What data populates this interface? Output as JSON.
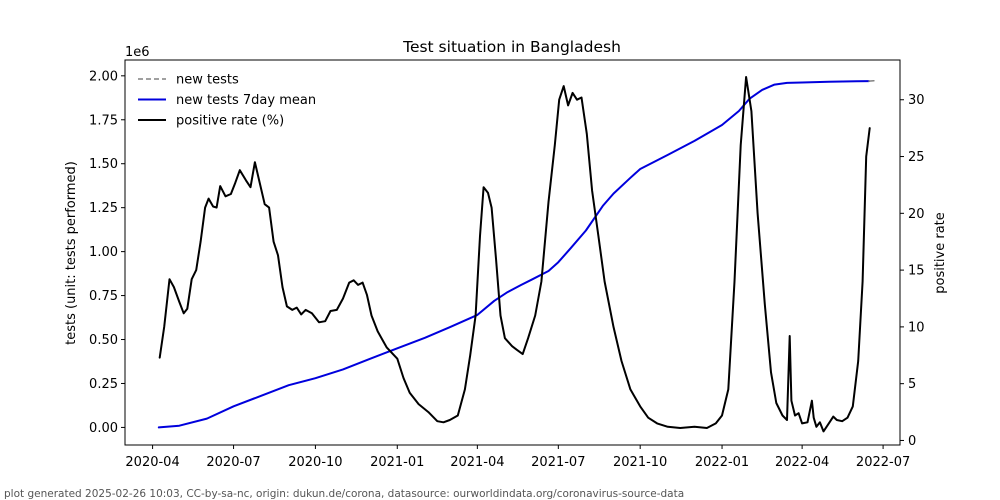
{
  "chart_data": {
    "type": "line",
    "title": "Test situation in Bangladesh",
    "ylabel": "tests (unit: tests performed)",
    "ylabel_right": "positive rate",
    "y_offset_label": "1e6",
    "footer": "plot generated 2025-02-26 10:03, CC-by-sa-nc, origin: dukun.de/corona, datasource: ourworldindata.org/coronavirus-source-data",
    "x_ticks": [
      "2020-04",
      "2020-07",
      "2020-10",
      "2021-01",
      "2021-04",
      "2021-07",
      "2021-10",
      "2022-01",
      "2022-04",
      "2022-07"
    ],
    "y_ticks": [
      "0.00",
      "0.25",
      "0.50",
      "0.75",
      "1.00",
      "1.25",
      "1.50",
      "1.75",
      "2.00"
    ],
    "y2_ticks": [
      "0",
      "5",
      "10",
      "15",
      "20",
      "25",
      "30"
    ],
    "xlim": [
      "2020-03-01",
      "2022-07-20"
    ],
    "ylim": [
      -0.1,
      2.09
    ],
    "y2lim": [
      -0.4,
      33.5
    ],
    "legend_position": "upper-left",
    "grid": false,
    "series": [
      {
        "name": "new tests",
        "axis": "left",
        "style": "dashed",
        "color": "#808080",
        "points": [
          [
            "2022-06-15",
            1.97
          ],
          [
            "2022-06-22",
            1.972
          ]
        ]
      },
      {
        "name": "new tests 7day mean",
        "axis": "left",
        "style": "solid",
        "color": "#0000dd",
        "points": [
          [
            "2020-04-08",
            0.0
          ],
          [
            "2020-05-01",
            0.01
          ],
          [
            "2020-06-01",
            0.05
          ],
          [
            "2020-07-01",
            0.12
          ],
          [
            "2020-08-01",
            0.18
          ],
          [
            "2020-09-01",
            0.24
          ],
          [
            "2020-10-01",
            0.28
          ],
          [
            "2020-11-01",
            0.33
          ],
          [
            "2020-12-01",
            0.39
          ],
          [
            "2021-01-01",
            0.45
          ],
          [
            "2021-02-01",
            0.51
          ],
          [
            "2021-03-01",
            0.57
          ],
          [
            "2021-04-01",
            0.64
          ],
          [
            "2021-04-20",
            0.72
          ],
          [
            "2021-05-05",
            0.77
          ],
          [
            "2021-05-20",
            0.81
          ],
          [
            "2021-06-01",
            0.84
          ],
          [
            "2021-06-20",
            0.89
          ],
          [
            "2021-07-01",
            0.94
          ],
          [
            "2021-07-15",
            1.02
          ],
          [
            "2021-08-01",
            1.12
          ],
          [
            "2021-08-20",
            1.26
          ],
          [
            "2021-09-01",
            1.33
          ],
          [
            "2021-09-20",
            1.42
          ],
          [
            "2021-10-01",
            1.47
          ],
          [
            "2021-11-01",
            1.55
          ],
          [
            "2021-12-01",
            1.63
          ],
          [
            "2022-01-01",
            1.72
          ],
          [
            "2022-01-20",
            1.8
          ],
          [
            "2022-02-01",
            1.87
          ],
          [
            "2022-02-15",
            1.92
          ],
          [
            "2022-03-01",
            1.95
          ],
          [
            "2022-03-15",
            1.96
          ],
          [
            "2022-04-01",
            1.962
          ],
          [
            "2022-05-01",
            1.966
          ],
          [
            "2022-06-01",
            1.969
          ],
          [
            "2022-06-15",
            1.97
          ]
        ]
      },
      {
        "name": "positive rate (%)",
        "axis": "right",
        "style": "solid",
        "color": "#000000",
        "points": [
          [
            "2020-04-09",
            7.3
          ],
          [
            "2020-04-14",
            10
          ],
          [
            "2020-04-20",
            14.2
          ],
          [
            "2020-04-25",
            13.5
          ],
          [
            "2020-05-01",
            12.2
          ],
          [
            "2020-05-06",
            11.2
          ],
          [
            "2020-05-10",
            11.6
          ],
          [
            "2020-05-15",
            14.2
          ],
          [
            "2020-05-20",
            15
          ],
          [
            "2020-05-25",
            17.5
          ],
          [
            "2020-05-30",
            20.5
          ],
          [
            "2020-06-03",
            21.3
          ],
          [
            "2020-06-08",
            20.6
          ],
          [
            "2020-06-12",
            20.5
          ],
          [
            "2020-06-16",
            22.4
          ],
          [
            "2020-06-22",
            21.5
          ],
          [
            "2020-06-28",
            21.7
          ],
          [
            "2020-07-03",
            22.7
          ],
          [
            "2020-07-08",
            23.8
          ],
          [
            "2020-07-15",
            22.9
          ],
          [
            "2020-07-20",
            22.3
          ],
          [
            "2020-07-25",
            24.5
          ],
          [
            "2020-07-30",
            22.8
          ],
          [
            "2020-08-05",
            20.8
          ],
          [
            "2020-08-10",
            20.5
          ],
          [
            "2020-08-15",
            17.5
          ],
          [
            "2020-08-20",
            16.3
          ],
          [
            "2020-08-25",
            13.5
          ],
          [
            "2020-08-30",
            11.8
          ],
          [
            "2020-09-05",
            11.5
          ],
          [
            "2020-09-10",
            11.7
          ],
          [
            "2020-09-15",
            11.1
          ],
          [
            "2020-09-20",
            11.5
          ],
          [
            "2020-09-27",
            11.2
          ],
          [
            "2020-10-05",
            10.4
          ],
          [
            "2020-10-12",
            10.5
          ],
          [
            "2020-10-18",
            11.4
          ],
          [
            "2020-10-25",
            11.5
          ],
          [
            "2020-11-01",
            12.5
          ],
          [
            "2020-11-08",
            13.9
          ],
          [
            "2020-11-13",
            14.1
          ],
          [
            "2020-11-18",
            13.7
          ],
          [
            "2020-11-23",
            13.9
          ],
          [
            "2020-11-28",
            12.8
          ],
          [
            "2020-12-03",
            11
          ],
          [
            "2020-12-10",
            9.6
          ],
          [
            "2020-12-20",
            8.2
          ],
          [
            "2021-01-01",
            7.2
          ],
          [
            "2021-01-08",
            5.5
          ],
          [
            "2021-01-15",
            4.2
          ],
          [
            "2021-01-25",
            3.2
          ],
          [
            "2021-02-05",
            2.5
          ],
          [
            "2021-02-15",
            1.7
          ],
          [
            "2021-02-22",
            1.6
          ],
          [
            "2021-03-01",
            1.8
          ],
          [
            "2021-03-10",
            2.2
          ],
          [
            "2021-03-18",
            4.5
          ],
          [
            "2021-03-24",
            7.5
          ],
          [
            "2021-03-30",
            11
          ],
          [
            "2021-04-04",
            18
          ],
          [
            "2021-04-08",
            22.3
          ],
          [
            "2021-04-13",
            21.8
          ],
          [
            "2021-04-17",
            20.5
          ],
          [
            "2021-04-22",
            16
          ],
          [
            "2021-04-27",
            11
          ],
          [
            "2021-05-02",
            9
          ],
          [
            "2021-05-10",
            8.3
          ],
          [
            "2021-05-15",
            8
          ],
          [
            "2021-05-22",
            7.6
          ],
          [
            "2021-05-28",
            9
          ],
          [
            "2021-06-05",
            11
          ],
          [
            "2021-06-12",
            14
          ],
          [
            "2021-06-20",
            21
          ],
          [
            "2021-06-27",
            26
          ],
          [
            "2021-07-02",
            30
          ],
          [
            "2021-07-07",
            31.2
          ],
          [
            "2021-07-12",
            29.5
          ],
          [
            "2021-07-17",
            30.6
          ],
          [
            "2021-07-22",
            30
          ],
          [
            "2021-07-27",
            30.2
          ],
          [
            "2021-08-02",
            27
          ],
          [
            "2021-08-08",
            22
          ],
          [
            "2021-08-15",
            18
          ],
          [
            "2021-08-22",
            14
          ],
          [
            "2021-09-01",
            10
          ],
          [
            "2021-09-10",
            7
          ],
          [
            "2021-09-20",
            4.5
          ],
          [
            "2021-10-01",
            3
          ],
          [
            "2021-10-10",
            2
          ],
          [
            "2021-10-20",
            1.5
          ],
          [
            "2021-11-01",
            1.2
          ],
          [
            "2021-11-15",
            1.1
          ],
          [
            "2021-12-01",
            1.2
          ],
          [
            "2021-12-15",
            1.1
          ],
          [
            "2021-12-25",
            1.5
          ],
          [
            "2022-01-01",
            2.2
          ],
          [
            "2022-01-08",
            4.5
          ],
          [
            "2022-01-15",
            14
          ],
          [
            "2022-01-22",
            26
          ],
          [
            "2022-01-28",
            32
          ],
          [
            "2022-02-03",
            29
          ],
          [
            "2022-02-10",
            20
          ],
          [
            "2022-02-18",
            12
          ],
          [
            "2022-02-25",
            6
          ],
          [
            "2022-03-03",
            3.3
          ],
          [
            "2022-03-10",
            2.2
          ],
          [
            "2022-03-15",
            1.8
          ],
          [
            "2022-03-18",
            9.2
          ],
          [
            "2022-03-20",
            3.5
          ],
          [
            "2022-03-24",
            2.2
          ],
          [
            "2022-03-28",
            2.4
          ],
          [
            "2022-04-01",
            1.5
          ],
          [
            "2022-04-07",
            1.6
          ],
          [
            "2022-04-12",
            3.5
          ],
          [
            "2022-04-14",
            2
          ],
          [
            "2022-04-17",
            1.2
          ],
          [
            "2022-04-21",
            1.6
          ],
          [
            "2022-04-25",
            0.8
          ],
          [
            "2022-05-01",
            1.5
          ],
          [
            "2022-05-06",
            2.1
          ],
          [
            "2022-05-10",
            1.8
          ],
          [
            "2022-05-16",
            1.7
          ],
          [
            "2022-05-22",
            2
          ],
          [
            "2022-05-28",
            3
          ],
          [
            "2022-06-03",
            7
          ],
          [
            "2022-06-08",
            14
          ],
          [
            "2022-06-12",
            25
          ],
          [
            "2022-06-16",
            27.5
          ]
        ]
      }
    ]
  }
}
